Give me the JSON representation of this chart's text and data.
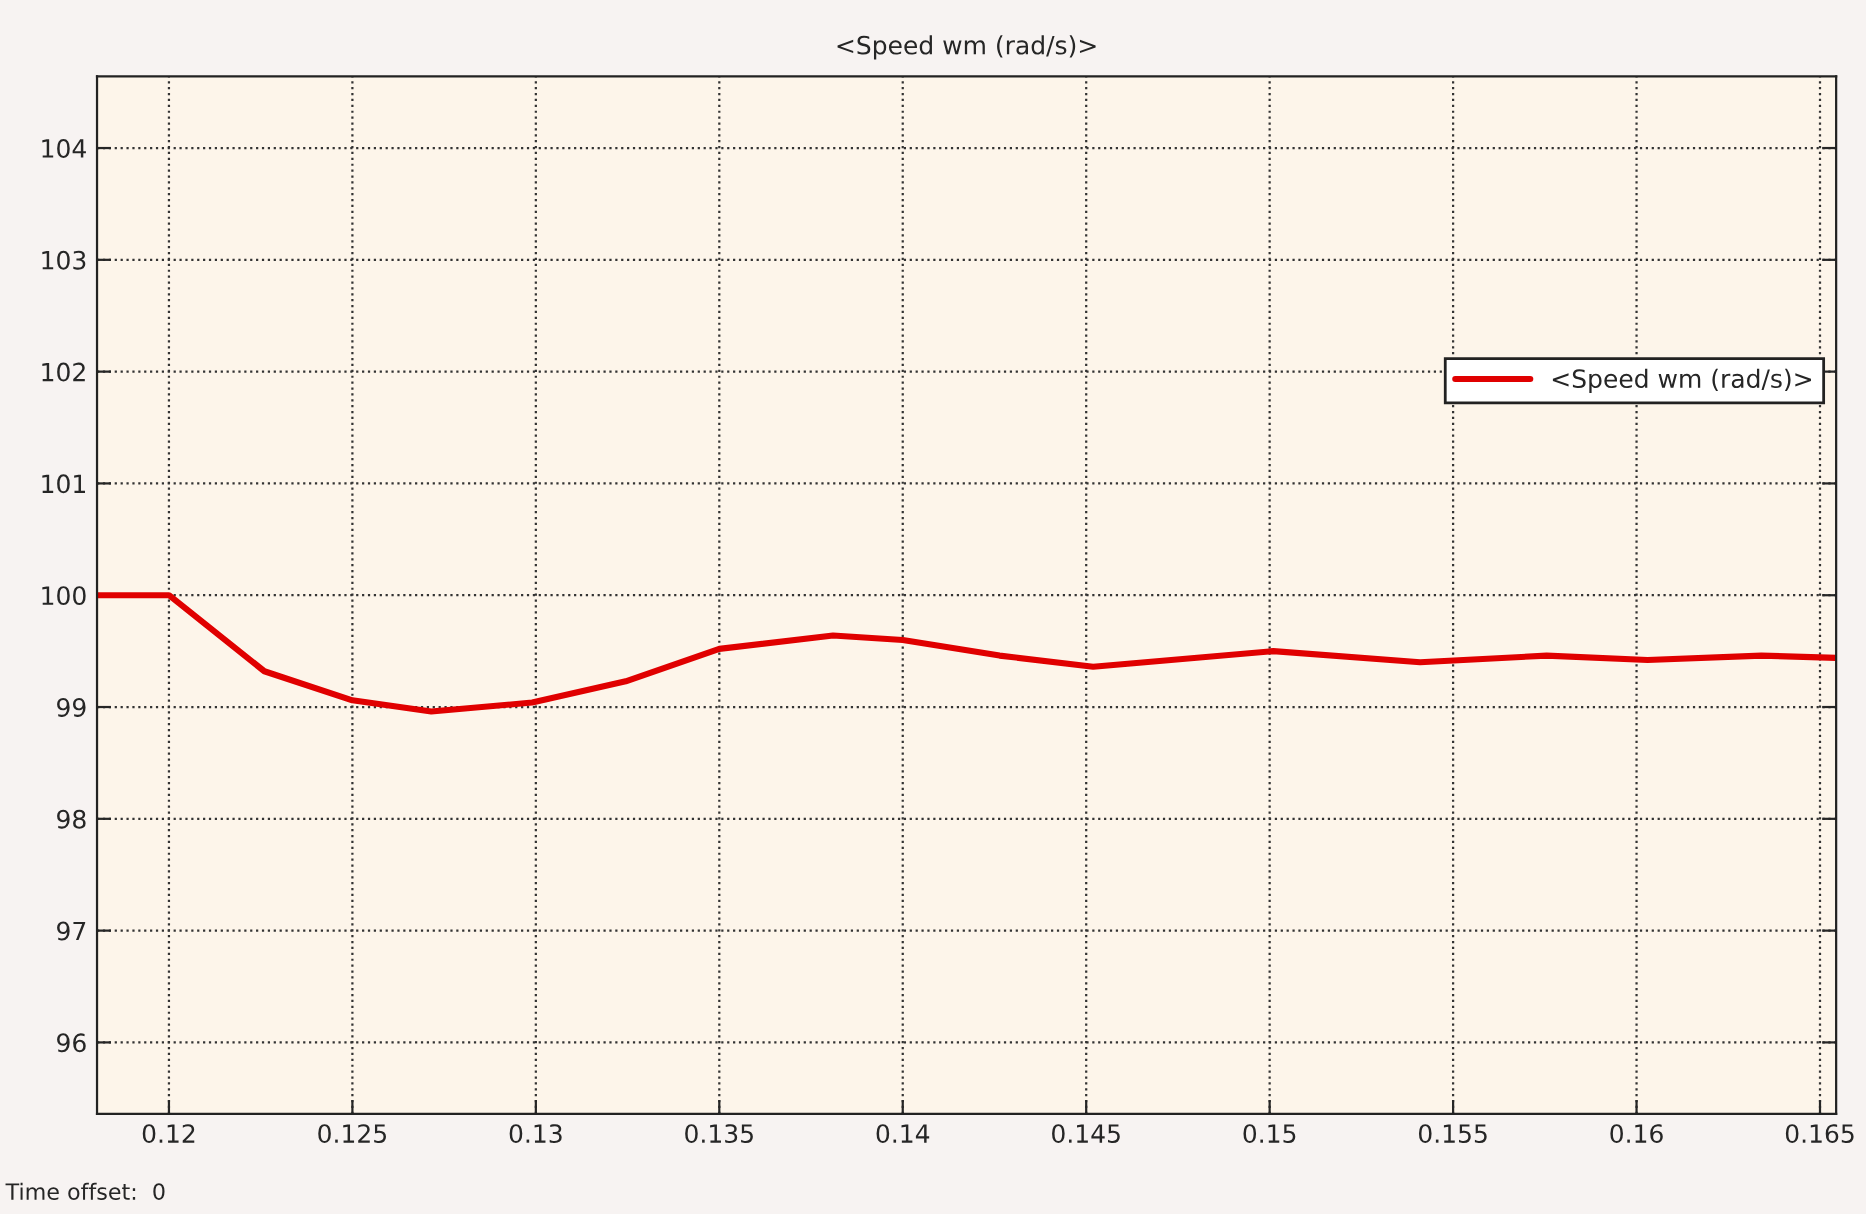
{
  "chart_data": {
    "type": "line",
    "title": "<Speed wm (rad/s)>",
    "x": [
      0.11804,
      0.12,
      0.1226,
      0.125,
      0.12715,
      0.1299,
      0.13245,
      0.135,
      0.1381,
      0.14,
      0.14264,
      0.14519,
      0.1501,
      0.1541,
      0.15755,
      0.1603,
      0.1634,
      0.16544
    ],
    "series": [
      {
        "name": "<Speed wm (rad/s)>",
        "color": "#e00000",
        "values": [
          100,
          100,
          99.32,
          99.06,
          98.96,
          99.04,
          99.23,
          99.52,
          99.64,
          99.6,
          99.46,
          99.36,
          99.5,
          99.4,
          99.46,
          99.42,
          99.46,
          99.44
        ]
      }
    ],
    "xlim": [
      0.11804,
      0.16544
    ],
    "xticks": [
      0.12,
      0.125,
      0.13,
      0.135,
      0.14,
      0.145,
      0.15,
      0.155,
      0.16,
      0.165
    ],
    "ylim": [
      95.36,
      104.64
    ],
    "yticks": [
      96,
      97,
      98,
      99,
      100,
      101,
      102,
      103,
      104
    ],
    "grid": true,
    "legend": "top right",
    "line_style": "solid",
    "marker": "none",
    "annotations": [
      "Time offset:  0"
    ]
  }
}
